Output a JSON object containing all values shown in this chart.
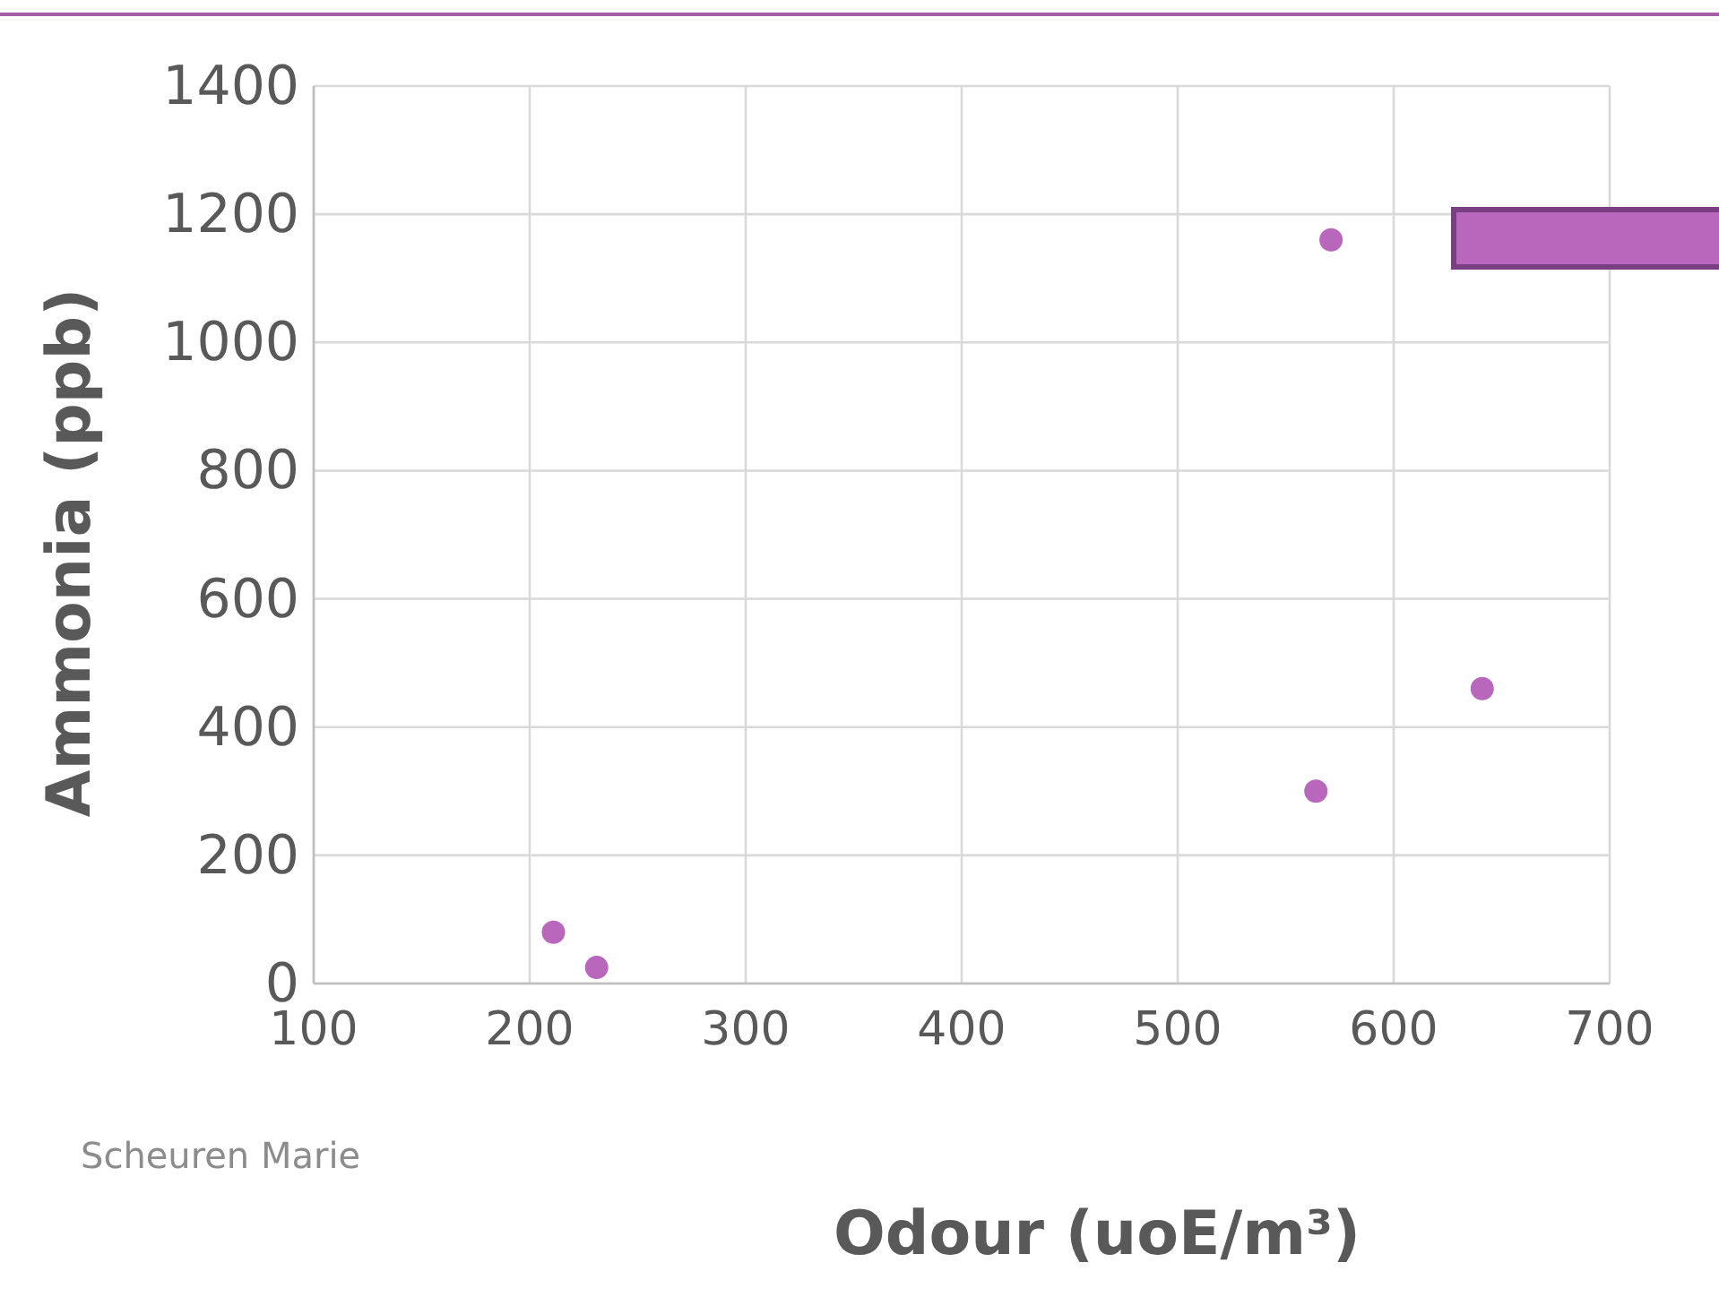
{
  "chart_data": {
    "type": "scatter",
    "xlabel": "Odour (uoE/m³)",
    "ylabel": "Ammonia (ppb)",
    "annotations": [
      "Scheuren Marie"
    ],
    "x": [
      211,
      231,
      564,
      571,
      641
    ],
    "series": [
      {
        "color": "#b966bd",
        "values": [
          80,
          25,
          300,
          1160,
          460
        ]
      }
    ],
    "xlim": [
      100,
      700
    ],
    "xticks": [
      100,
      200,
      300,
      400,
      500,
      600,
      700
    ],
    "ylim": [
      0,
      1400
    ],
    "yticks": [
      0,
      200,
      400,
      600,
      800,
      1000,
      1200,
      1400
    ],
    "grid": true,
    "marker": "circle"
  }
}
